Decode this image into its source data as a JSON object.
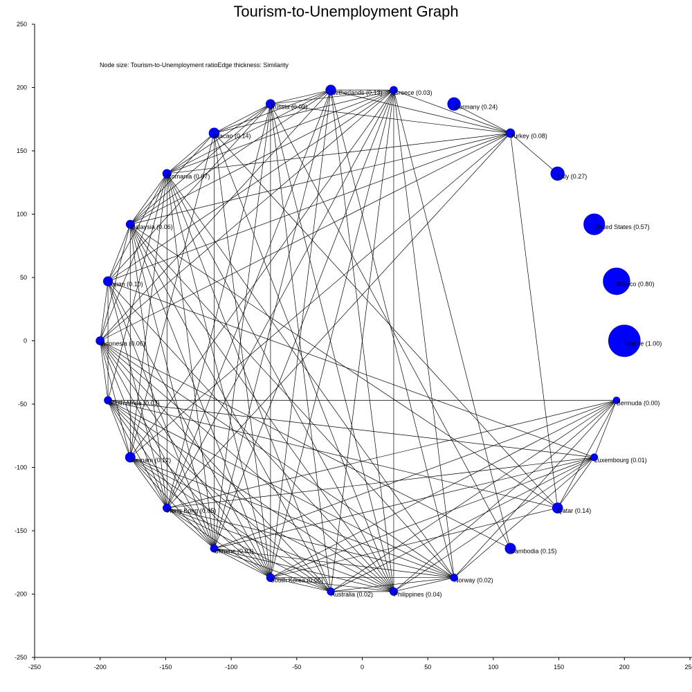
{
  "chart_data": {
    "type": "network",
    "title": "Tourism-to-Unemployment Graph",
    "note": "Node size: Tourism-to-Unemployment ratioEdge thickness: Similarity",
    "xlim": [
      -250,
      250
    ],
    "ylim": [
      -250,
      250
    ],
    "xticks": [
      -250,
      -200,
      -150,
      -100,
      -50,
      0,
      50,
      100,
      150,
      200,
      250
    ],
    "yticks": [
      -250,
      -200,
      -150,
      -100,
      -50,
      0,
      50,
      100,
      150,
      200,
      250
    ],
    "nodes": [
      {
        "name": "France",
        "label": "France (1.00)",
        "x": 200,
        "y": 0,
        "value": 1.0
      },
      {
        "name": "Mexico",
        "label": "Mexico (0.80)",
        "x": 194,
        "y": 47,
        "value": 0.8
      },
      {
        "name": "United States",
        "label": "United States (0.57)",
        "x": 177,
        "y": 92,
        "value": 0.57
      },
      {
        "name": "Italy",
        "label": "Italy (0.27)",
        "x": 149,
        "y": 132,
        "value": 0.27
      },
      {
        "name": "Turkey",
        "label": "Turkey (0.08)",
        "x": 113,
        "y": 164,
        "value": 0.08
      },
      {
        "name": "Germany",
        "label": "Germany (0.24)",
        "x": 70,
        "y": 187,
        "value": 0.24
      },
      {
        "name": "Greece",
        "label": "Greece (0.03)",
        "x": 24,
        "y": 198,
        "value": 0.03
      },
      {
        "name": "Netherlands",
        "label": "Netherlands (0.13)",
        "x": -24,
        "y": 198,
        "value": 0.13
      },
      {
        "name": "Russia",
        "label": "Russia (0.09)",
        "x": -70,
        "y": 187,
        "value": 0.09
      },
      {
        "name": "Macao",
        "label": "Macao (0.14)",
        "x": -113,
        "y": 164,
        "value": 0.14
      },
      {
        "name": "Romania",
        "label": "Romania (0.07)",
        "x": -149,
        "y": 132,
        "value": 0.07
      },
      {
        "name": "Malaysia",
        "label": "Malaysia (0.06)",
        "x": -177,
        "y": 92,
        "value": 0.06
      },
      {
        "name": "Japan",
        "label": "Japan (0.10)",
        "x": -194,
        "y": 47,
        "value": 0.1
      },
      {
        "name": "Indonesia",
        "label": "Indonesia (0.06)",
        "x": -200,
        "y": 0,
        "value": 0.06
      },
      {
        "name": "South Africa",
        "label": "South Africa (0.03)",
        "x": -194,
        "y": -47,
        "value": 0.03
      },
      {
        "name": "Vietnam",
        "label": "Vietnam (0.12)",
        "x": -177,
        "y": -92,
        "value": 0.12
      },
      {
        "name": "Hong Kong",
        "label": "Hong Kong (0.05)",
        "x": -149,
        "y": -132,
        "value": 0.05
      },
      {
        "name": "Ukraine",
        "label": "Ukraine (0.03)",
        "x": -113,
        "y": -164,
        "value": 0.03
      },
      {
        "name": "South Korea",
        "label": "South Korea (0.05)",
        "x": -70,
        "y": -187,
        "value": 0.05
      },
      {
        "name": "Australia",
        "label": "Australia (0.02)",
        "x": -24,
        "y": -198,
        "value": 0.02
      },
      {
        "name": "Philippines",
        "label": "Philippines (0.04)",
        "x": 24,
        "y": -198,
        "value": 0.04
      },
      {
        "name": "Norway",
        "label": "Norway (0.02)",
        "x": 70,
        "y": -187,
        "value": 0.02
      },
      {
        "name": "Cambodia",
        "label": "Cambodia (0.15)",
        "x": 113,
        "y": -164,
        "value": 0.15
      },
      {
        "name": "Qatar",
        "label": "Qatar (0.14)",
        "x": 149,
        "y": -132,
        "value": 0.14
      },
      {
        "name": "Luxembourg",
        "label": "Luxembourg (0.01)",
        "x": 177,
        "y": -92,
        "value": 0.01
      },
      {
        "name": "Bermuda",
        "label": "Bermuda (0.00)",
        "x": 194,
        "y": -47,
        "value": 0.0
      }
    ],
    "edges": [
      [
        "Germany",
        "Turkey"
      ],
      [
        "Italy",
        "Turkey"
      ],
      [
        "Turkey",
        "Greece"
      ],
      [
        "Turkey",
        "Netherlands"
      ],
      [
        "Turkey",
        "Russia"
      ],
      [
        "Turkey",
        "Romania"
      ],
      [
        "Turkey",
        "Malaysia"
      ],
      [
        "Turkey",
        "Japan"
      ],
      [
        "Turkey",
        "Indonesia"
      ],
      [
        "Turkey",
        "Vietnam"
      ],
      [
        "Turkey",
        "Hong Kong"
      ],
      [
        "Turkey",
        "Qatar"
      ],
      [
        "Greece",
        "Netherlands"
      ],
      [
        "Greece",
        "Russia"
      ],
      [
        "Greece",
        "Macao"
      ],
      [
        "Greece",
        "Romania"
      ],
      [
        "Greece",
        "Malaysia"
      ],
      [
        "Greece",
        "Japan"
      ],
      [
        "Greece",
        "Indonesia"
      ],
      [
        "Greece",
        "Vietnam"
      ],
      [
        "Greece",
        "Hong Kong"
      ],
      [
        "Greece",
        "Ukraine"
      ],
      [
        "Greece",
        "South Korea"
      ],
      [
        "Greece",
        "Australia"
      ],
      [
        "Greece",
        "Philippines"
      ],
      [
        "Greece",
        "Norway"
      ],
      [
        "Greece",
        "Cambodia"
      ],
      [
        "Netherlands",
        "Russia"
      ],
      [
        "Netherlands",
        "Macao"
      ],
      [
        "Netherlands",
        "Romania"
      ],
      [
        "Netherlands",
        "Malaysia"
      ],
      [
        "Netherlands",
        "Indonesia"
      ],
      [
        "Netherlands",
        "Hong Kong"
      ],
      [
        "Netherlands",
        "Ukraine"
      ],
      [
        "Netherlands",
        "South Korea"
      ],
      [
        "Netherlands",
        "Philippines"
      ],
      [
        "Netherlands",
        "Norway"
      ],
      [
        "Russia",
        "Macao"
      ],
      [
        "Russia",
        "Romania"
      ],
      [
        "Russia",
        "Malaysia"
      ],
      [
        "Russia",
        "Japan"
      ],
      [
        "Russia",
        "Hong Kong"
      ],
      [
        "Russia",
        "Ukraine"
      ],
      [
        "Russia",
        "South Korea"
      ],
      [
        "Russia",
        "Australia"
      ],
      [
        "Russia",
        "Philippines"
      ],
      [
        "Russia",
        "Cambodia"
      ],
      [
        "Macao",
        "Romania"
      ],
      [
        "Macao",
        "Malaysia"
      ],
      [
        "Macao",
        "Vietnam"
      ],
      [
        "Macao",
        "Ukraine"
      ],
      [
        "Macao",
        "South Korea"
      ],
      [
        "Macao",
        "Philippines"
      ],
      [
        "Macao",
        "Qatar"
      ],
      [
        "Romania",
        "Malaysia"
      ],
      [
        "Romania",
        "Japan"
      ],
      [
        "Romania",
        "Indonesia"
      ],
      [
        "Romania",
        "South Africa"
      ],
      [
        "Romania",
        "Vietnam"
      ],
      [
        "Romania",
        "Hong Kong"
      ],
      [
        "Romania",
        "Ukraine"
      ],
      [
        "Romania",
        "South Korea"
      ],
      [
        "Romania",
        "Australia"
      ],
      [
        "Romania",
        "Philippines"
      ],
      [
        "Romania",
        "Norway"
      ],
      [
        "Malaysia",
        "Japan"
      ],
      [
        "Malaysia",
        "Indonesia"
      ],
      [
        "Malaysia",
        "Vietnam"
      ],
      [
        "Malaysia",
        "Hong Kong"
      ],
      [
        "Malaysia",
        "Ukraine"
      ],
      [
        "Malaysia",
        "South Korea"
      ],
      [
        "Malaysia",
        "Australia"
      ],
      [
        "Malaysia",
        "Philippines"
      ],
      [
        "Malaysia",
        "Norway"
      ],
      [
        "Malaysia",
        "Qatar"
      ],
      [
        "Japan",
        "Indonesia"
      ],
      [
        "Japan",
        "South Africa"
      ],
      [
        "Japan",
        "Hong Kong"
      ],
      [
        "Japan",
        "Ukraine"
      ],
      [
        "Japan",
        "South Korea"
      ],
      [
        "Japan",
        "Philippines"
      ],
      [
        "Japan",
        "Luxembourg"
      ],
      [
        "Indonesia",
        "South Africa"
      ],
      [
        "Indonesia",
        "Vietnam"
      ],
      [
        "Indonesia",
        "Hong Kong"
      ],
      [
        "Indonesia",
        "Ukraine"
      ],
      [
        "Indonesia",
        "South Korea"
      ],
      [
        "Indonesia",
        "Australia"
      ],
      [
        "Indonesia",
        "Philippines"
      ],
      [
        "Indonesia",
        "Norway"
      ],
      [
        "Indonesia",
        "Cambodia"
      ],
      [
        "South Africa",
        "Vietnam"
      ],
      [
        "South Africa",
        "Hong Kong"
      ],
      [
        "South Africa",
        "Ukraine"
      ],
      [
        "South Africa",
        "South Korea"
      ],
      [
        "South Africa",
        "Australia"
      ],
      [
        "South Africa",
        "Philippines"
      ],
      [
        "South Africa",
        "Norway"
      ],
      [
        "South Africa",
        "Qatar"
      ],
      [
        "South Africa",
        "Luxembourg"
      ],
      [
        "South Africa",
        "Bermuda"
      ],
      [
        "Vietnam",
        "Hong Kong"
      ],
      [
        "Vietnam",
        "Ukraine"
      ],
      [
        "Vietnam",
        "South Korea"
      ],
      [
        "Vietnam",
        "Australia"
      ],
      [
        "Vietnam",
        "Philippines"
      ],
      [
        "Vietnam",
        "Norway"
      ],
      [
        "Hong Kong",
        "Ukraine"
      ],
      [
        "Hong Kong",
        "South Korea"
      ],
      [
        "Hong Kong",
        "Australia"
      ],
      [
        "Hong Kong",
        "Philippines"
      ],
      [
        "Hong Kong",
        "Norway"
      ],
      [
        "Hong Kong",
        "Luxembourg"
      ],
      [
        "Hong Kong",
        "Bermuda"
      ],
      [
        "Ukraine",
        "South Korea"
      ],
      [
        "Ukraine",
        "Australia"
      ],
      [
        "Ukraine",
        "Philippines"
      ],
      [
        "Ukraine",
        "Norway"
      ],
      [
        "Ukraine",
        "Luxembourg"
      ],
      [
        "Ukraine",
        "Bermuda"
      ],
      [
        "South Korea",
        "Australia"
      ],
      [
        "South Korea",
        "Philippines"
      ],
      [
        "South Korea",
        "Norway"
      ],
      [
        "South Korea",
        "Qatar"
      ],
      [
        "South Korea",
        "Luxembourg"
      ],
      [
        "South Korea",
        "Bermuda"
      ],
      [
        "Australia",
        "Philippines"
      ],
      [
        "Australia",
        "Norway"
      ],
      [
        "Australia",
        "Luxembourg"
      ],
      [
        "Australia",
        "Bermuda"
      ],
      [
        "Philippines",
        "Norway"
      ],
      [
        "Philippines",
        "Luxembourg"
      ],
      [
        "Philippines",
        "Bermuda"
      ],
      [
        "Norway",
        "Luxembourg"
      ],
      [
        "Norway",
        "Bermuda"
      ],
      [
        "Qatar",
        "Luxembourg"
      ],
      [
        "Qatar",
        "Bermuda"
      ],
      [
        "Luxembourg",
        "Bermuda"
      ]
    ],
    "node_color": "#0000ff"
  }
}
